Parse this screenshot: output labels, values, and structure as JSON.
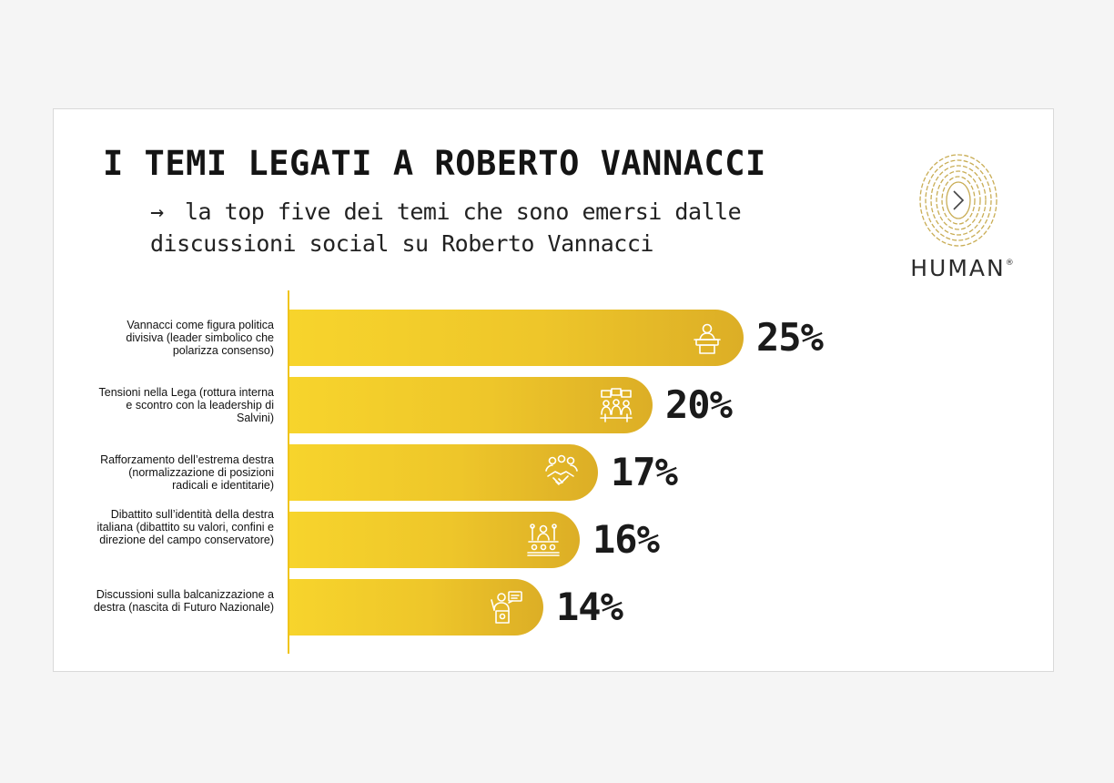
{
  "title": "I TEMI LEGATI A ROBERTO VANNACCI",
  "subtitle_arrow": "→",
  "subtitle": "la top five dei temi che sono emersi dalle discussioni social su Roberto Vannacci",
  "logo": {
    "word": "HUMAN",
    "registered": "®",
    "icon": "fingerprint-play-icon"
  },
  "colors": {
    "bar": "#f0c419",
    "bar_dark": "#dcae26",
    "icon": "#ffffff",
    "text": "#141414"
  },
  "chart_data": {
    "type": "bar",
    "orientation": "horizontal",
    "categories": [
      "Vannacci come figura politica divisiva (leader simbolico che polarizza consenso)",
      "Tensioni nella Lega (rottura interna e scontro con la leadership di Salvini)",
      "Rafforzamento dell’estrema destra (normalizzazione di posizioni radicali e identitarie)",
      "Dibattito sull’identità della destra italiana (dibattito su valori, confini e direzione del campo conservatore)",
      "Discussioni sulla balcanizzazione a destra (nascita di Futuro Nazionale)"
    ],
    "values": [
      25,
      20,
      17,
      16,
      14
    ],
    "value_labels": [
      "25%",
      "20%",
      "17%",
      "16%",
      "14%"
    ],
    "icons": [
      "speaker-podium-icon",
      "debate-crowd-icon",
      "handshake-group-icon",
      "assembly-icon",
      "protester-icon"
    ],
    "unit": "%",
    "xlim": [
      0,
      25
    ],
    "grid": false,
    "legend": "none"
  }
}
